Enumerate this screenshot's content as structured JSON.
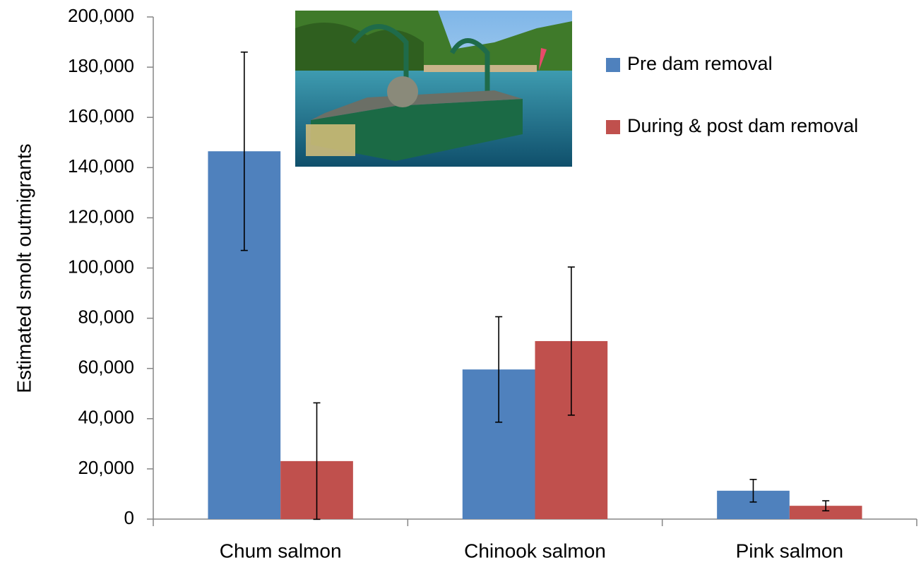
{
  "chart_data": {
    "type": "bar",
    "y_label": "Estimated smolt outmigrants",
    "categories": [
      "Chum salmon",
      "Chinook salmon",
      "Pink salmon"
    ],
    "series": [
      {
        "name": "Pre dam removal",
        "color": "#4f81bd",
        "values": [
          146500,
          59600,
          11300
        ],
        "errors": [
          39500,
          21000,
          4500
        ]
      },
      {
        "name": "During & post dam removal",
        "color": "#c0504d",
        "values": [
          23100,
          70900,
          5300
        ],
        "errors": [
          23200,
          29500,
          2000
        ]
      }
    ],
    "ylim": [
      0,
      200000
    ],
    "yticks": [
      0,
      {
        "value": 20000,
        "label": "20,000"
      },
      {
        "value": 40000,
        "label": "40,000"
      },
      {
        "value": 60000,
        "label": "60,000"
      },
      {
        "value": 80000,
        "label": "80,000"
      },
      {
        "value": 100000,
        "label": "100,000"
      },
      {
        "value": 120000,
        "label": "120,000"
      },
      {
        "value": 140000,
        "label": "140,000"
      },
      {
        "value": 160000,
        "label": "160,000"
      },
      {
        "value": 180000,
        "label": "180,000"
      },
      {
        "value": 200000,
        "label": "200,000"
      }
    ],
    "grid": false,
    "legend": "upper right"
  }
}
